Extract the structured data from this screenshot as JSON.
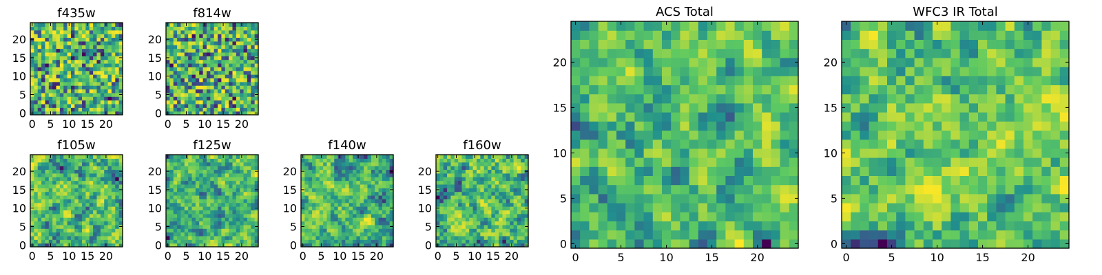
{
  "figure": {
    "description_colormap": "viridis",
    "colors": {
      "viridis": [
        "#440154",
        "#3b528b",
        "#21908d",
        "#5dc962",
        "#fde725"
      ],
      "frame": "#000000",
      "background": "#ffffff"
    }
  },
  "chart_data": [
    {
      "type": "heatmap",
      "title": "f435w",
      "xlim": [
        0,
        24
      ],
      "ylim": [
        0,
        24
      ],
      "xticks": [
        0,
        5,
        10,
        15,
        20
      ],
      "yticks": [
        0,
        5,
        10,
        15,
        20
      ],
      "grid": false,
      "seed": 11,
      "smooth": 0
    },
    {
      "type": "heatmap",
      "title": "f814w",
      "xlim": [
        0,
        24
      ],
      "ylim": [
        0,
        24
      ],
      "xticks": [
        0,
        5,
        10,
        15,
        20
      ],
      "yticks": [
        0,
        5,
        10,
        15,
        20
      ],
      "grid": false,
      "seed": 23,
      "smooth": 0
    },
    {
      "type": "heatmap",
      "title": "f105w",
      "xlim": [
        0,
        24
      ],
      "ylim": [
        0,
        24
      ],
      "xticks": [
        0,
        5,
        10,
        15,
        20
      ],
      "yticks": [
        0,
        5,
        10,
        15,
        20
      ],
      "grid": false,
      "seed": 37,
      "smooth": 1
    },
    {
      "type": "heatmap",
      "title": "f125w",
      "xlim": [
        0,
        24
      ],
      "ylim": [
        0,
        24
      ],
      "xticks": [
        0,
        5,
        10,
        15,
        20
      ],
      "yticks": [
        0,
        5,
        10,
        15,
        20
      ],
      "grid": false,
      "seed": 41,
      "smooth": 1
    },
    {
      "type": "heatmap",
      "title": "f140w",
      "xlim": [
        0,
        24
      ],
      "ylim": [
        0,
        24
      ],
      "xticks": [
        0,
        5,
        10,
        15,
        20
      ],
      "yticks": [
        0,
        5,
        10,
        15,
        20
      ],
      "grid": false,
      "seed": 53,
      "smooth": 1
    },
    {
      "type": "heatmap",
      "title": "f160w",
      "xlim": [
        0,
        24
      ],
      "ylim": [
        0,
        24
      ],
      "xticks": [
        0,
        5,
        10,
        15,
        20
      ],
      "yticks": [
        0,
        5,
        10,
        15,
        20
      ],
      "grid": false,
      "seed": 67,
      "smooth": 1
    },
    {
      "type": "heatmap",
      "title": "ACS Total",
      "xlim": [
        0,
        24
      ],
      "ylim": [
        0,
        24
      ],
      "xticks": [
        0,
        5,
        10,
        15,
        20
      ],
      "yticks": [
        0,
        5,
        10,
        15,
        20
      ],
      "grid": false,
      "seed": 79,
      "smooth": 1
    },
    {
      "type": "heatmap",
      "title": "WFC3 IR Total",
      "xlim": [
        0,
        24
      ],
      "ylim": [
        0,
        24
      ],
      "xticks": [
        0,
        5,
        10,
        15,
        20
      ],
      "yticks": [
        0,
        5,
        10,
        15,
        20
      ],
      "grid": false,
      "seed": 97,
      "smooth": 1
    }
  ]
}
